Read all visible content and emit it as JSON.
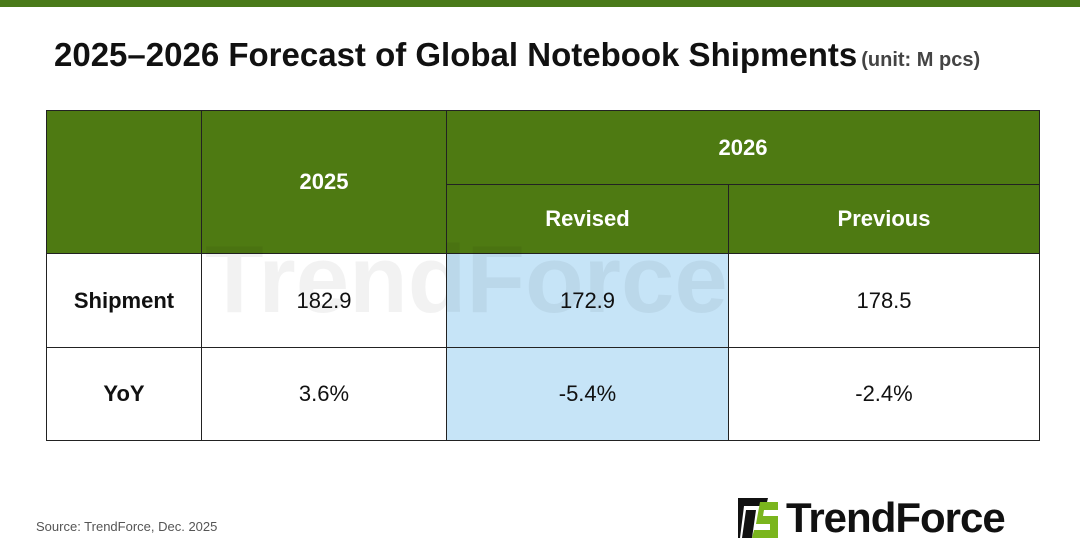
{
  "title": "2025–2026 Forecast of Global Notebook Shipments",
  "unit": "(unit: M pcs)",
  "chart_data": {
    "type": "table",
    "columns": [
      "",
      "2025",
      "2026 Revised",
      "2026 Previous"
    ],
    "header": {
      "y2025": "2025",
      "y2026": "2026",
      "revised": "Revised",
      "previous": "Previous"
    },
    "rows": [
      {
        "label": "Shipment",
        "v2025": "182.9",
        "revised": "172.9",
        "previous": "178.5"
      },
      {
        "label": "YoY",
        "v2025": "3.6%",
        "revised": "-5.4%",
        "previous": "-2.4%"
      }
    ],
    "header_color": "#4e7a12",
    "highlight_color": "#c6e4f7"
  },
  "watermark": "TrendForce",
  "source": "Source: TrendForce, Dec. 2025",
  "logo": {
    "text": "TrendForce",
    "accent": "#7ab51d"
  }
}
